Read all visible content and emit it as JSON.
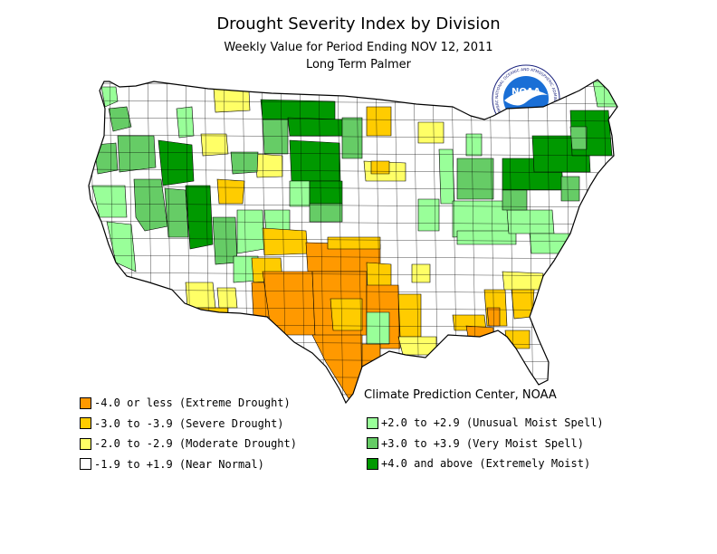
{
  "title": "Drought Severity Index by Division",
  "subtitle": "Weekly Value for Period Ending NOV 12, 2011",
  "index_name": "Long Term Palmer",
  "credit": "Climate Prediction Center, NOAA",
  "logo": {
    "text": "NOAA",
    "ring_text": "NATIONAL OCEANIC AND ATMOSPHERIC ADMINISTRATION · U.S. DEPARTMENT OF COMMERCE"
  },
  "colors": {
    "extreme_drought": "#ff9900",
    "severe_drought": "#ffcc00",
    "moderate_drought": "#ffff66",
    "near_normal": "#ffffff",
    "unusual_moist": "#99ff99",
    "very_moist": "#66cc66",
    "extremely_moist": "#009900",
    "border": "#000000"
  },
  "legend": {
    "left": [
      {
        "label": "-4.0 or less (Extreme Drought)",
        "color": "#ff9900"
      },
      {
        "label": "-3.0 to -3.9 (Severe Drought)",
        "color": "#ffcc00"
      },
      {
        "label": "-2.0 to -2.9 (Moderate Drought)",
        "color": "#ffff66"
      },
      {
        "label": "-1.9 to +1.9 (Near Normal)",
        "color": "#ffffff"
      }
    ],
    "right": [
      {
        "label": "+2.0 to +2.9 (Unusual Moist Spell)",
        "color": "#99ff99"
      },
      {
        "label": "+3.0 to +3.9 (Very Moist Spell)",
        "color": "#66cc66"
      },
      {
        "label": "+4.0 and above (Extremely Moist)",
        "color": "#009900"
      }
    ]
  }
}
